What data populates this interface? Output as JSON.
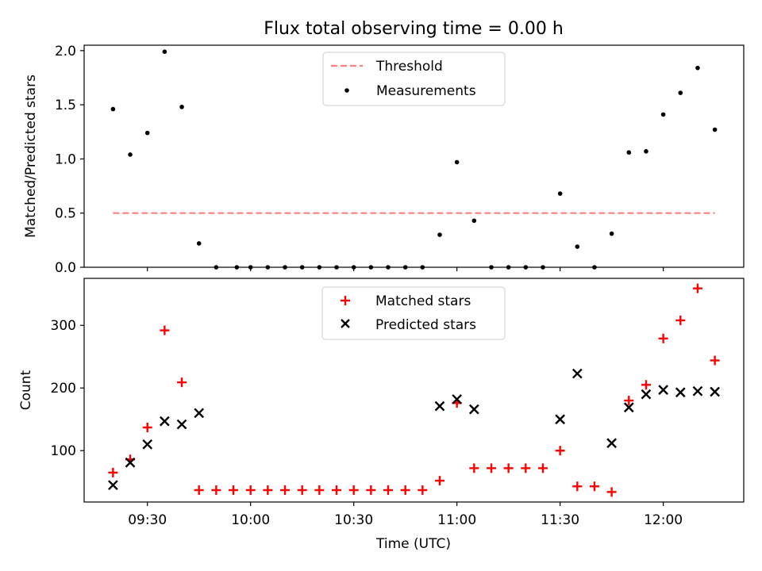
{
  "chart_data": {
    "title": "Flux total observing time = 0.00 h",
    "xlabel": "Time (UTC)",
    "x_ticks": [
      "09:30",
      "10:00",
      "10:30",
      "11:00",
      "11:30",
      "12:00"
    ],
    "x_times": [
      "09:20",
      "09:25",
      "09:30",
      "09:35",
      "09:40",
      "09:45",
      "09:50",
      "09:55",
      "10:00",
      "10:05",
      "10:10",
      "10:15",
      "10:20",
      "10:25",
      "10:30",
      "10:35",
      "10:40",
      "10:45",
      "10:50",
      "10:55",
      "11:00",
      "11:05",
      "11:10",
      "11:15",
      "11:20",
      "11:25",
      "11:30",
      "11:35",
      "11:40",
      "11:45",
      "11:50",
      "11:55",
      "12:00",
      "12:05",
      "12:10",
      "12:15"
    ],
    "panels": [
      {
        "type": "scatter",
        "ylabel": "Matched/Predicted stars",
        "ylim": [
          0,
          2.05
        ],
        "y_ticks": [
          "0.0",
          "0.5",
          "1.0",
          "1.5",
          "2.0"
        ],
        "y_tick_values": [
          0,
          0.5,
          1.0,
          1.5,
          2.0
        ],
        "legend": [
          "Threshold",
          "Measurements"
        ],
        "legend_position": "top-center",
        "threshold": {
          "name": "Threshold",
          "value": 0.5,
          "color": "#ff7f7f",
          "style": "dashed"
        },
        "series": [
          {
            "name": "Measurements",
            "color": "#000000",
            "marker": "dot",
            "x": [
              "09:20",
              "09:25",
              "09:30",
              "09:35",
              "09:40",
              "09:45",
              "09:50",
              "09:56",
              "10:00",
              "10:05",
              "10:10",
              "10:15",
              "10:20",
              "10:25",
              "10:30",
              "10:35",
              "10:40",
              "10:45",
              "10:50",
              "10:55",
              "11:00",
              "11:05",
              "11:10",
              "11:15",
              "11:20",
              "11:25",
              "11:30",
              "11:35",
              "11:40",
              "11:45",
              "11:50",
              "11:55",
              "12:00",
              "12:05",
              "12:10",
              "12:15"
            ],
            "values": [
              1.46,
              1.04,
              1.24,
              1.99,
              1.48,
              0.22,
              0,
              0,
              0,
              0,
              0,
              0,
              0,
              0,
              0,
              0,
              0,
              0,
              0,
              0.3,
              0.97,
              0.43,
              0,
              0,
              0,
              0,
              0.68,
              0.19,
              0,
              0.31,
              1.06,
              1.07,
              1.41,
              1.61,
              1.84,
              1.27
            ]
          }
        ]
      },
      {
        "type": "scatter",
        "ylabel": "Count",
        "ylim": [
          18,
          375
        ],
        "y_ticks": [
          "100",
          "200",
          "300"
        ],
        "y_tick_values": [
          100,
          200,
          300
        ],
        "legend": [
          "Matched stars",
          "Predicted stars"
        ],
        "legend_position": "top-center",
        "series": [
          {
            "name": "Matched stars",
            "color": "#ff0000",
            "marker": "plus",
            "x": [
              "09:20",
              "09:25",
              "09:30",
              "09:35",
              "09:40",
              "09:45",
              "09:50",
              "09:55",
              "10:00",
              "10:05",
              "10:10",
              "10:15",
              "10:20",
              "10:25",
              "10:30",
              "10:35",
              "10:40",
              "10:45",
              "10:50",
              "10:55",
              "11:00",
              "11:05",
              "11:10",
              "11:15",
              "11:20",
              "11:25",
              "11:30",
              "11:35",
              "11:40",
              "11:45",
              "11:50",
              "11:55",
              "12:00",
              "12:05",
              "12:10",
              "12:15"
            ],
            "values": [
              65,
              86,
              137,
              292,
              209,
              37,
              37,
              37,
              37,
              37,
              37,
              37,
              37,
              37,
              37,
              37,
              37,
              37,
              37,
              52,
              176,
              72,
              72,
              72,
              72,
              72,
              100,
              43,
              43,
              34,
              180,
              205,
              279,
              308,
              359,
              244
            ]
          },
          {
            "name": "Predicted stars",
            "color": "#000000",
            "marker": "x",
            "x": [
              "09:20",
              "09:25",
              "09:30",
              "09:35",
              "09:40",
              "09:45",
              "10:55",
              "11:00",
              "11:05",
              "11:30",
              "11:35",
              "11:45",
              "11:50",
              "11:55",
              "12:00",
              "12:05",
              "12:10",
              "12:15"
            ],
            "values": [
              45,
              81,
              110,
              147,
              142,
              160,
              171,
              182,
              166,
              150,
              223,
              112,
              169,
              190,
              197,
              193,
              195,
              194
            ]
          }
        ]
      }
    ]
  }
}
